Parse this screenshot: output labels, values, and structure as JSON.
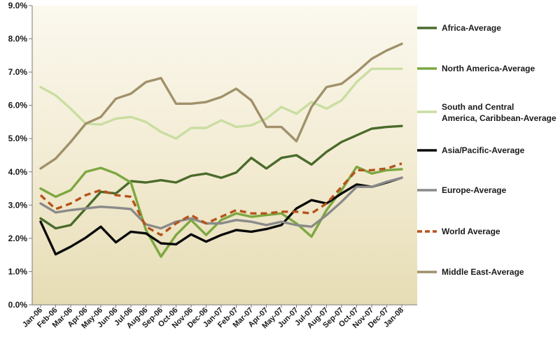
{
  "chart_data": {
    "type": "line",
    "title": "",
    "xlabel": "",
    "ylabel": "",
    "ylim": [
      0,
      9
    ],
    "y_ticks": [
      "0.0%",
      "1.0%",
      "2.0%",
      "3.0%",
      "4.0%",
      "5.0%",
      "6.0%",
      "7.0%",
      "8.0%",
      "9.0%"
    ],
    "grid": false,
    "legend_position": "right",
    "categories": [
      "Jan-06",
      "Feb-06",
      "Mar-06",
      "Apr-06",
      "May-06",
      "Jun-06",
      "Jul-06",
      "Aug-06",
      "Sep-06",
      "Oct-06",
      "Nov-06",
      "Dec-06",
      "Jan-07",
      "Feb-07",
      "Mar-07",
      "Apr-07",
      "May-07",
      "Jun-07",
      "Jul-07",
      "Aug-07",
      "Sep-07",
      "Oct-07",
      "Nov-07",
      "Dec-07",
      "Jan-08"
    ],
    "series": [
      {
        "name": "Africa-Average",
        "color": "#4a6b2a",
        "dash": "solid",
        "values": [
          2.6,
          2.3,
          2.4,
          2.9,
          3.4,
          3.35,
          3.72,
          3.68,
          3.75,
          3.68,
          3.88,
          3.95,
          3.82,
          3.98,
          4.42,
          4.1,
          4.42,
          4.5,
          4.22,
          4.6,
          4.9,
          5.1,
          5.3,
          5.35,
          5.38
        ]
      },
      {
        "name": "North America-Average",
        "color": "#7ca840",
        "dash": "solid",
        "values": [
          3.5,
          3.25,
          3.45,
          4.0,
          4.12,
          3.95,
          3.68,
          2.25,
          1.45,
          2.1,
          2.55,
          2.1,
          2.55,
          2.75,
          2.65,
          2.7,
          2.75,
          2.45,
          2.05,
          2.85,
          3.45,
          4.15,
          3.95,
          4.05,
          4.08
        ]
      },
      {
        "name": "South and Central America, Caribbean-Average",
        "color": "#c9dea1",
        "dash": "solid",
        "values": [
          6.55,
          6.3,
          5.9,
          5.45,
          5.42,
          5.6,
          5.65,
          5.5,
          5.2,
          5.0,
          5.32,
          5.32,
          5.55,
          5.35,
          5.4,
          5.6,
          5.95,
          5.75,
          6.1,
          5.9,
          6.15,
          6.7,
          7.1,
          7.1,
          7.1
        ]
      },
      {
        "name": "Asia/Pacific-Average",
        "color": "#0a0a0a",
        "dash": "solid",
        "values": [
          2.5,
          1.52,
          1.75,
          2.02,
          2.35,
          1.88,
          2.2,
          2.15,
          1.85,
          1.82,
          2.12,
          1.9,
          2.1,
          2.25,
          2.2,
          2.28,
          2.4,
          2.9,
          3.15,
          3.05,
          3.35,
          3.62,
          3.55,
          3.68,
          3.82
        ]
      },
      {
        "name": "Europe-Average",
        "color": "#8a8a8a",
        "dash": "solid",
        "values": [
          3.05,
          2.78,
          2.85,
          2.9,
          2.95,
          2.92,
          2.88,
          2.42,
          2.3,
          2.5,
          2.6,
          2.45,
          2.45,
          2.55,
          2.5,
          2.4,
          2.5,
          2.4,
          2.35,
          2.7,
          3.1,
          3.55,
          3.55,
          3.7,
          3.82
        ]
      },
      {
        "name": "World Average",
        "color": "#b5531c",
        "dash": "dashed",
        "values": [
          3.3,
          2.88,
          3.05,
          3.3,
          3.45,
          3.3,
          3.25,
          2.35,
          2.1,
          2.45,
          2.7,
          2.45,
          2.65,
          2.85,
          2.75,
          2.75,
          2.8,
          2.8,
          2.75,
          3.05,
          3.55,
          4.05,
          4.05,
          4.1,
          4.25
        ]
      },
      {
        "name": "Middle East-Average",
        "color": "#a0916a",
        "dash": "solid",
        "values": [
          4.1,
          4.4,
          4.9,
          5.45,
          5.65,
          6.2,
          6.35,
          6.7,
          6.82,
          6.05,
          6.05,
          6.1,
          6.25,
          6.5,
          6.15,
          5.35,
          5.35,
          4.92,
          5.95,
          6.55,
          6.65,
          7.0,
          7.4,
          7.65,
          7.85
        ]
      }
    ]
  }
}
